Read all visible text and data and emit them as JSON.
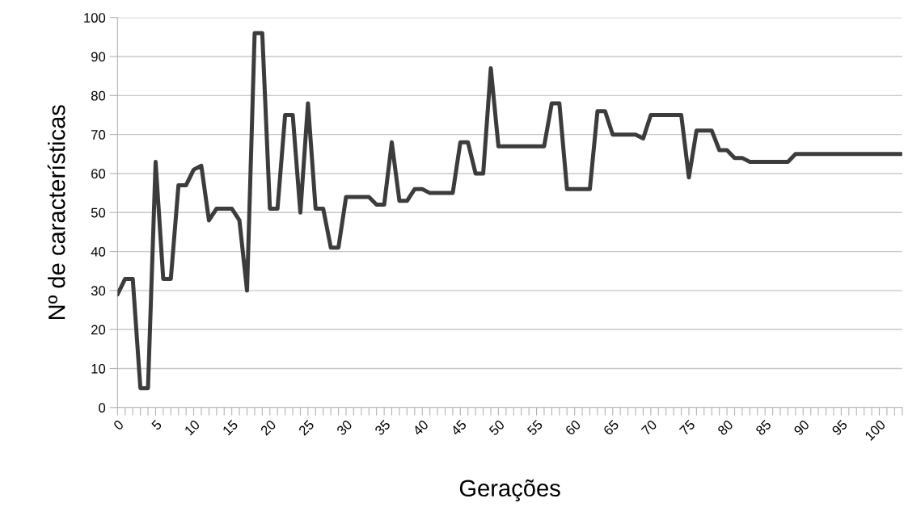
{
  "chart_data": {
    "type": "line",
    "xlabel": "Gerações",
    "ylabel": "Nº de características",
    "categories": [
      "0",
      null,
      null,
      null,
      null,
      "5",
      null,
      null,
      null,
      null,
      "10",
      null,
      null,
      null,
      null,
      "15",
      null,
      null,
      null,
      null,
      "20",
      null,
      null,
      null,
      null,
      "25",
      null,
      null,
      null,
      null,
      "30",
      null,
      null,
      null,
      null,
      "35",
      null,
      null,
      null,
      null,
      "40",
      null,
      null,
      null,
      null,
      "45",
      null,
      null,
      null,
      null,
      "50",
      null,
      null,
      null,
      null,
      "55",
      null,
      null,
      null,
      null,
      "60",
      null,
      null,
      null,
      null,
      "65",
      null,
      null,
      null,
      null,
      "70",
      null,
      null,
      null,
      null,
      "75",
      null,
      null,
      null,
      null,
      "80",
      null,
      null,
      null,
      null,
      "85",
      null,
      null,
      null,
      null,
      "90",
      null,
      null,
      null,
      null,
      "95",
      null,
      null,
      null,
      null,
      "100",
      null,
      null,
      null
    ],
    "series": [
      {
        "color": "#3c3c3c",
        "values": [
          29,
          33,
          33,
          5,
          5,
          63,
          33,
          33,
          57,
          57,
          61,
          62,
          48,
          51,
          51,
          51,
          48,
          30,
          96,
          96,
          51,
          51,
          75,
          75,
          50,
          78,
          51,
          51,
          41,
          41,
          54,
          54,
          54,
          54,
          52,
          52,
          68,
          53,
          53,
          56,
          56,
          55,
          55,
          55,
          55,
          68,
          68,
          60,
          60,
          87,
          67,
          67,
          67,
          67,
          67,
          67,
          67,
          78,
          78,
          56,
          56,
          56,
          56,
          76,
          76,
          70,
          70,
          70,
          70,
          69,
          75,
          75,
          75,
          75,
          75,
          59,
          71,
          71,
          71,
          66,
          66,
          64,
          64,
          63,
          63,
          63,
          63,
          63,
          63,
          65,
          65,
          65,
          65,
          65,
          65,
          65,
          65,
          65,
          65,
          65,
          65,
          65,
          65,
          65
        ]
      }
    ],
    "ylim": [
      0,
      100
    ],
    "yticks": [
      0,
      10,
      20,
      30,
      40,
      50,
      60,
      70,
      80,
      90,
      100
    ],
    "grid": "y",
    "marker": "none",
    "line_style": "solid"
  }
}
